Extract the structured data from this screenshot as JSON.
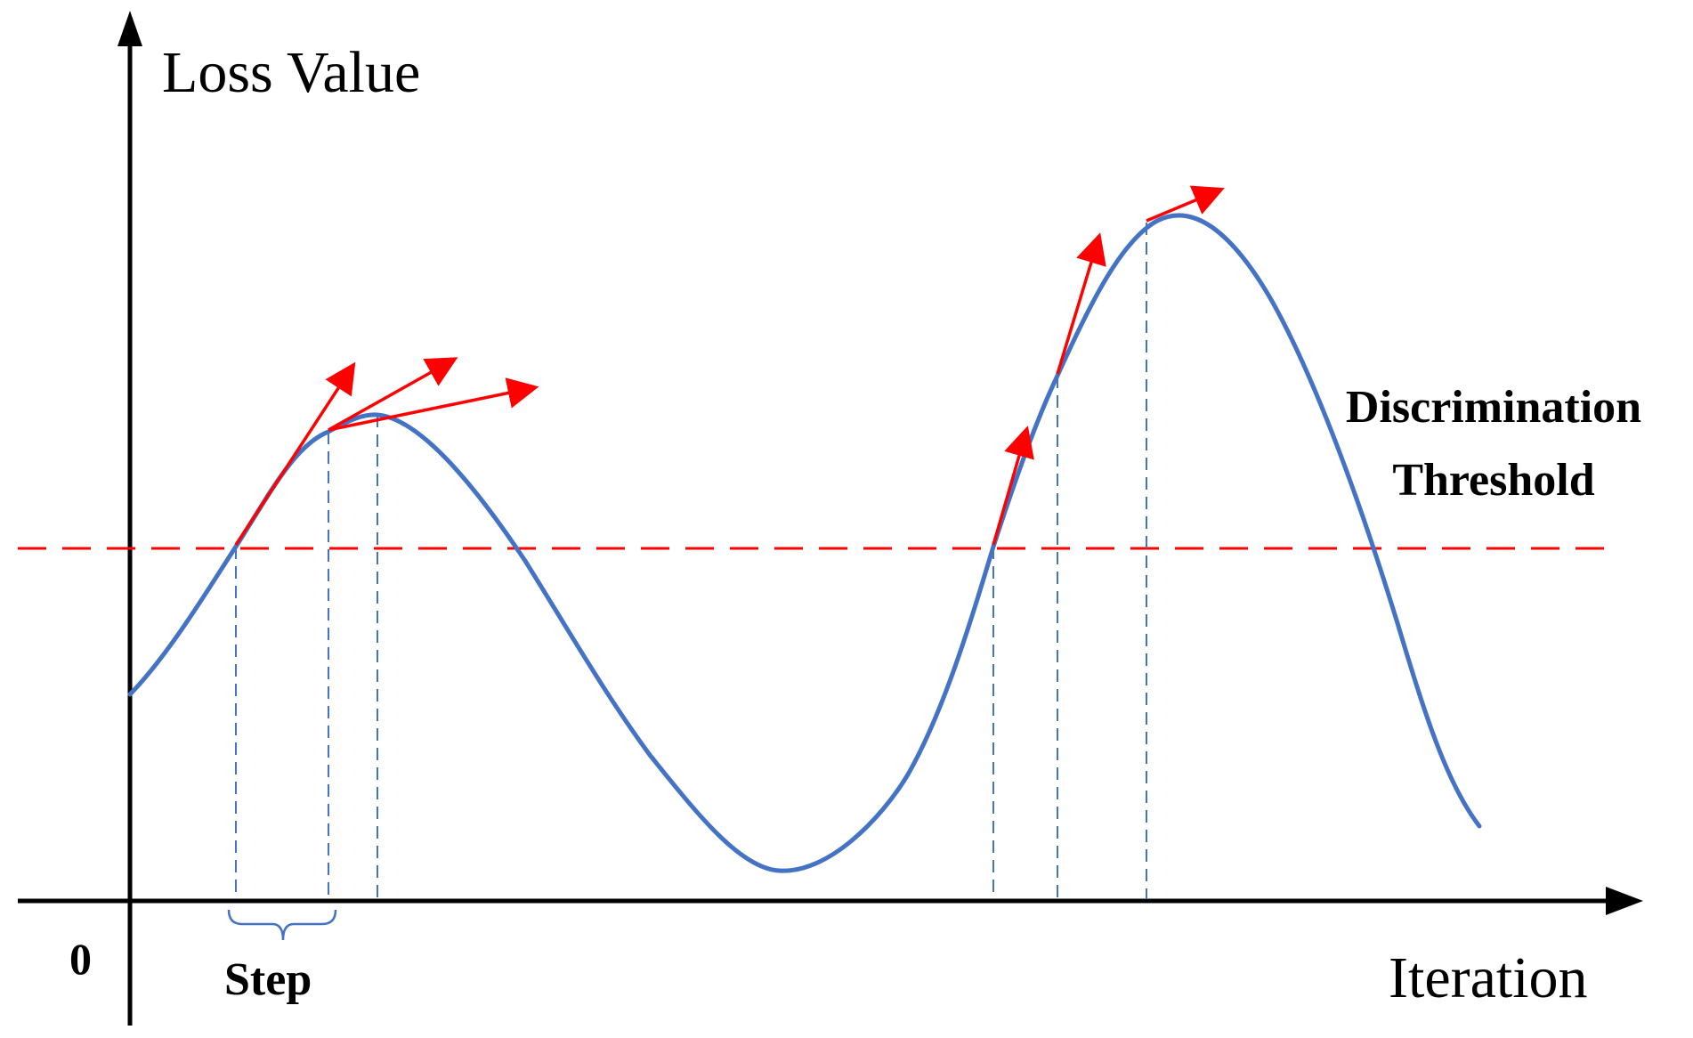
{
  "axes": {
    "y_label": "Loss Value",
    "x_label": "Iteration",
    "origin_label": "0"
  },
  "annotations": {
    "step_label": "Step",
    "threshold_label_line1": "Discrimination",
    "threshold_label_line2": "Threshold"
  },
  "colors": {
    "curve": "#4472C4",
    "arrows": "#FF0000",
    "threshold_line": "#FF0000",
    "guide_lines": "#4472C4",
    "axes": "#000000"
  },
  "icons": {
    "gradient_arrows": "red-arrow-icon"
  }
}
